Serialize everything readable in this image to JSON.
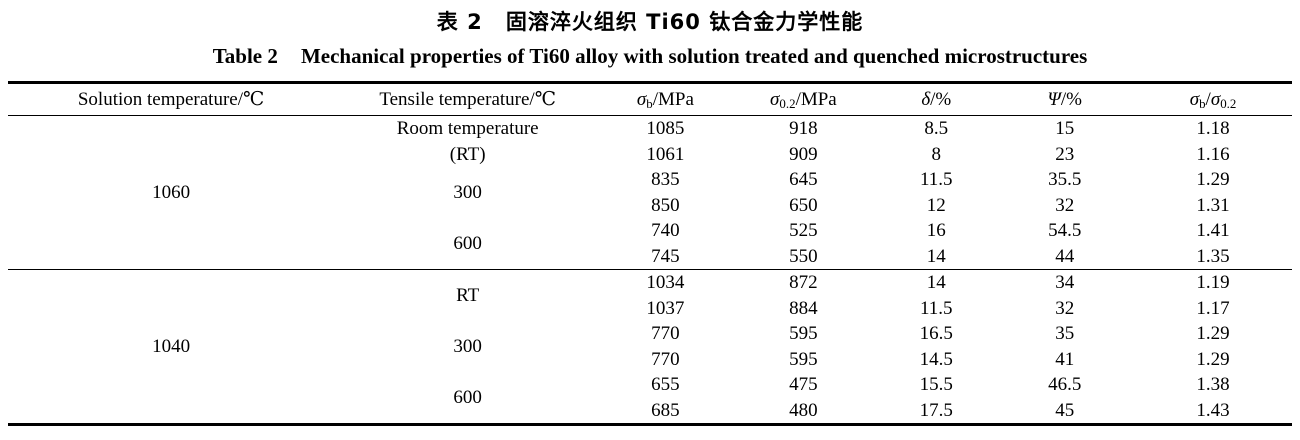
{
  "page": {
    "background": "#ffffff",
    "text_color": "#000000",
    "rule_color": "#000000"
  },
  "title_zh": {
    "label": "表 2",
    "text": "固溶淬火组织 Ti60 钛合金力学性能"
  },
  "title_en": {
    "label": "Table 2",
    "text": "Mechanical properties of Ti60 alloy with solution treated and quenched microstructures"
  },
  "table": {
    "col_widths": [
      "25.4%",
      "20.8%",
      "10%",
      "11.5%",
      "9.2%",
      "10.8%",
      "12.3%"
    ],
    "columns": [
      {
        "key": "solution-temperature",
        "segments": [
          {
            "t": "Solution temperature/℃"
          }
        ]
      },
      {
        "key": "tensile-temperature",
        "segments": [
          {
            "t": "Tensile temperature/℃"
          }
        ]
      },
      {
        "key": "sigma-b",
        "segments": [
          {
            "t": "σ",
            "s": "i"
          },
          {
            "t": "b",
            "s": "sub"
          },
          {
            "t": "/MPa"
          }
        ]
      },
      {
        "key": "sigma-0-2",
        "segments": [
          {
            "t": "σ",
            "s": "i"
          },
          {
            "t": "0.2",
            "s": "sub"
          },
          {
            "t": "/MPa"
          }
        ]
      },
      {
        "key": "delta",
        "segments": [
          {
            "t": "δ",
            "s": "i"
          },
          {
            "t": "/%"
          }
        ]
      },
      {
        "key": "psi",
        "segments": [
          {
            "t": "Ψ",
            "s": "i"
          },
          {
            "t": "/%"
          }
        ]
      },
      {
        "key": "sigma-ratio",
        "segments": [
          {
            "t": "σ",
            "s": "i"
          },
          {
            "t": "b",
            "s": "sub"
          },
          {
            "t": "/"
          },
          {
            "t": "σ",
            "s": "i"
          },
          {
            "t": "0.2",
            "s": "sub"
          }
        ]
      }
    ],
    "groups": [
      {
        "solution_temperature": "1060",
        "subgroups": [
          {
            "label": [
              "Room temperature",
              "(RT)"
            ],
            "rows": [
              [
                "1085",
                "918",
                "8.5",
                "15",
                "1.18"
              ],
              [
                "1061",
                "909",
                "8",
                "23",
                "1.16"
              ]
            ]
          },
          {
            "label": [
              "300"
            ],
            "rows": [
              [
                "835",
                "645",
                "11.5",
                "35.5",
                "1.29"
              ],
              [
                "850",
                "650",
                "12",
                "32",
                "1.31"
              ]
            ]
          },
          {
            "label": [
              "600"
            ],
            "rows": [
              [
                "740",
                "525",
                "16",
                "54.5",
                "1.41"
              ],
              [
                "745",
                "550",
                "14",
                "44",
                "1.35"
              ]
            ]
          }
        ]
      },
      {
        "solution_temperature": "1040",
        "subgroups": [
          {
            "label": [
              "RT"
            ],
            "rows": [
              [
                "1034",
                "872",
                "14",
                "34",
                "1.19"
              ],
              [
                "1037",
                "884",
                "11.5",
                "32",
                "1.17"
              ]
            ]
          },
          {
            "label": [
              "300"
            ],
            "rows": [
              [
                "770",
                "595",
                "16.5",
                "35",
                "1.29"
              ],
              [
                "770",
                "595",
                "14.5",
                "41",
                "1.29"
              ]
            ]
          },
          {
            "label": [
              "600"
            ],
            "rows": [
              [
                "655",
                "475",
                "15.5",
                "46.5",
                "1.38"
              ],
              [
                "685",
                "480",
                "17.5",
                "45",
                "1.43"
              ]
            ]
          }
        ]
      }
    ]
  }
}
